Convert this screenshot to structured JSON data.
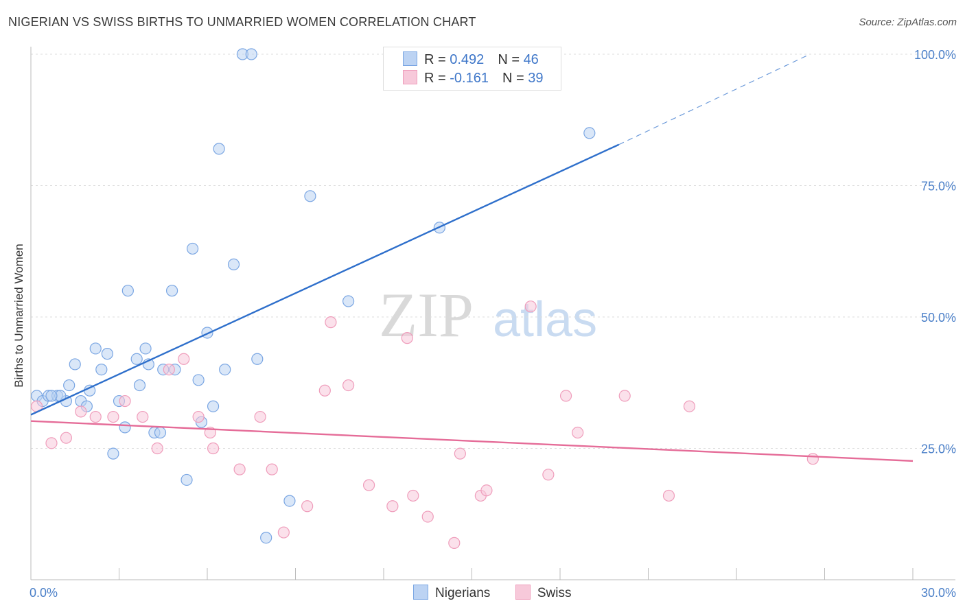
{
  "header": {
    "title": "NIGERIAN VS SWISS BIRTHS TO UNMARRIED WOMEN CORRELATION CHART",
    "source": "Source: ZipAtlas.com"
  },
  "watermark": {
    "zip": "ZIP",
    "atlas": "atlas"
  },
  "chart_data": {
    "type": "scatter",
    "ylabel": "Births to Unmarried Women",
    "xlim": [
      0,
      30
    ],
    "ylim": [
      0,
      100
    ],
    "x_ticks": [
      {
        "value": 0,
        "label": "0.0%"
      },
      {
        "value": 30,
        "label": "30.0%"
      }
    ],
    "y_ticks": [
      {
        "value": 25,
        "label": "25.0%"
      },
      {
        "value": 50,
        "label": "50.0%"
      },
      {
        "value": 75,
        "label": "75.0%"
      },
      {
        "value": 100,
        "label": "100.0%"
      }
    ],
    "grid": true,
    "legend_position": "top-center",
    "series": [
      {
        "name": "Nigerians",
        "color": "#7aa6e3",
        "fill": "#bcd3f3",
        "line_color": "#2e6fcb",
        "stats": {
          "r_label": "R = ",
          "r": "0.492",
          "n_label": "N = ",
          "n": "46"
        },
        "trend": {
          "x0": 0,
          "y0": 31.4,
          "x1": 20,
          "y1": 82.8,
          "dash_to_x": 26.5,
          "dash_to_y": 100
        },
        "points": [
          [
            0.2,
            35
          ],
          [
            0.4,
            34
          ],
          [
            0.6,
            35
          ],
          [
            0.9,
            35
          ],
          [
            1.2,
            34
          ],
          [
            1.3,
            37
          ],
          [
            1.5,
            41
          ],
          [
            1.7,
            34
          ],
          [
            1.9,
            33
          ],
          [
            2.0,
            36
          ],
          [
            2.2,
            44
          ],
          [
            2.4,
            40
          ],
          [
            2.6,
            43
          ],
          [
            2.8,
            24
          ],
          [
            3.0,
            34
          ],
          [
            3.2,
            29
          ],
          [
            3.3,
            55
          ],
          [
            3.6,
            42
          ],
          [
            3.7,
            37
          ],
          [
            3.9,
            44
          ],
          [
            4.0,
            41
          ],
          [
            4.2,
            28
          ],
          [
            4.4,
            28
          ],
          [
            4.5,
            40
          ],
          [
            4.8,
            55
          ],
          [
            4.9,
            40
          ],
          [
            5.3,
            19
          ],
          [
            5.5,
            63
          ],
          [
            5.7,
            38
          ],
          [
            5.8,
            30
          ],
          [
            6.0,
            47
          ],
          [
            6.2,
            33
          ],
          [
            6.4,
            82
          ],
          [
            6.6,
            40
          ],
          [
            6.9,
            60
          ],
          [
            7.2,
            100
          ],
          [
            7.5,
            100
          ],
          [
            7.7,
            42
          ],
          [
            8.0,
            8
          ],
          [
            8.8,
            15
          ],
          [
            9.5,
            73
          ],
          [
            10.8,
            53
          ],
          [
            13.9,
            67
          ],
          [
            19.0,
            85
          ],
          [
            1.0,
            35
          ],
          [
            0.7,
            35
          ]
        ]
      },
      {
        "name": "Swiss",
        "color": "#ef9dbb",
        "fill": "#f7c9da",
        "line_color": "#e56c98",
        "stats": {
          "r_label": "R = ",
          "r": "-0.161",
          "n_label": "N = ",
          "n": "39"
        },
        "trend": {
          "x0": 0,
          "y0": 30.2,
          "x1": 30,
          "y1": 22.6
        },
        "points": [
          [
            0.2,
            33
          ],
          [
            0.7,
            26
          ],
          [
            1.2,
            27
          ],
          [
            1.7,
            32
          ],
          [
            2.2,
            31
          ],
          [
            2.8,
            31
          ],
          [
            3.2,
            34
          ],
          [
            3.8,
            31
          ],
          [
            4.3,
            25
          ],
          [
            4.7,
            40
          ],
          [
            5.2,
            42
          ],
          [
            5.7,
            31
          ],
          [
            6.2,
            25
          ],
          [
            6.1,
            28
          ],
          [
            7.1,
            21
          ],
          [
            7.8,
            31
          ],
          [
            8.2,
            21
          ],
          [
            8.6,
            9
          ],
          [
            9.4,
            14
          ],
          [
            10.0,
            36
          ],
          [
            10.2,
            49
          ],
          [
            10.8,
            37
          ],
          [
            11.5,
            18
          ],
          [
            12.3,
            14
          ],
          [
            12.8,
            46
          ],
          [
            13.0,
            16
          ],
          [
            13.5,
            12
          ],
          [
            14.4,
            7
          ],
          [
            14.6,
            24
          ],
          [
            15.3,
            16
          ],
          [
            15.5,
            17
          ],
          [
            17.0,
            52
          ],
          [
            17.6,
            20
          ],
          [
            18.2,
            35
          ],
          [
            18.6,
            28
          ],
          [
            20.2,
            35
          ],
          [
            21.7,
            16
          ],
          [
            22.4,
            33
          ],
          [
            26.6,
            23
          ]
        ]
      }
    ]
  }
}
